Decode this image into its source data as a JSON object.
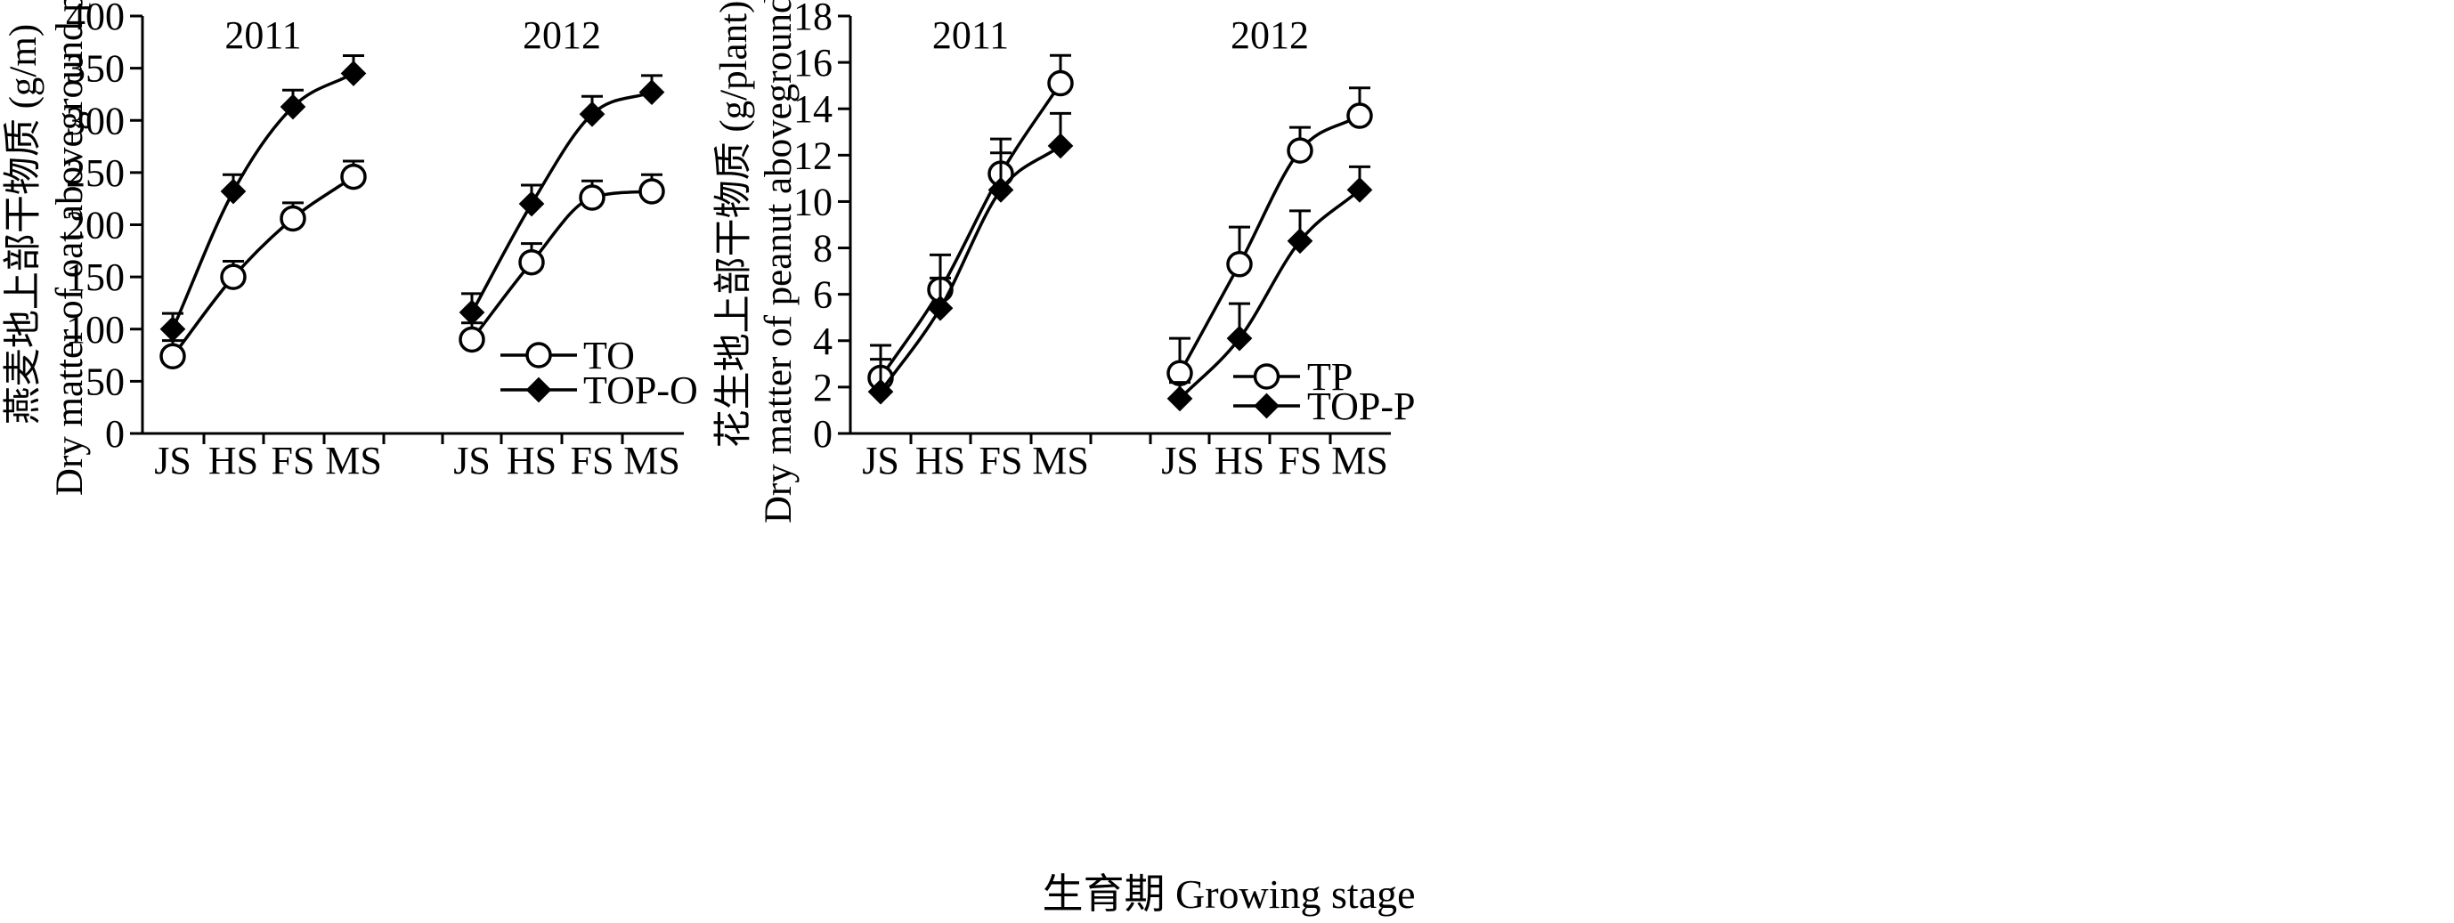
{
  "xlabel": "生育期 Growing stage",
  "chart_data": [
    {
      "type": "line",
      "panel": "oat",
      "ylabel_cn": "燕麦地上部干物质 (g/m)",
      "ylabel_en": "Dry matter of oat aboveground part",
      "ylim": [
        0,
        400
      ],
      "yticks": [
        "0",
        "50",
        "100",
        "150",
        "200",
        "250",
        "300",
        "350",
        "400"
      ],
      "groups": [
        {
          "year": "2011",
          "categories": [
            "JS",
            "HS",
            "FS",
            "MS"
          ],
          "series": [
            {
              "name": "TO",
              "marker": "circle",
              "values": [
                74,
                150,
                206,
                246
              ],
              "errors": [
                15,
                15,
                15,
                15
              ]
            },
            {
              "name": "TOP-O",
              "marker": "diamond",
              "values": [
                100,
                232,
                313,
                345
              ],
              "errors": [
                15,
                16,
                16,
                17
              ]
            }
          ]
        },
        {
          "year": "2012",
          "categories": [
            "JS",
            "HS",
            "FS",
            "MS"
          ],
          "series": [
            {
              "name": "TO",
              "marker": "circle",
              "values": [
                90,
                164,
                226,
                232
              ],
              "errors": [
                16,
                18,
                16,
                16
              ]
            },
            {
              "name": "TOP-O",
              "marker": "diamond",
              "values": [
                116,
                220,
                306,
                327
              ],
              "errors": [
                18,
                18,
                17,
                16
              ]
            }
          ]
        }
      ],
      "legend": [
        {
          "label": "TO",
          "marker": "circle"
        },
        {
          "label": "TOP-O",
          "marker": "diamond"
        }
      ]
    },
    {
      "type": "line",
      "panel": "peanut",
      "ylabel_cn": "花生地上部干物质 (g/plant)",
      "ylabel_en": "Dry matter of peanut aboveground part",
      "ylim": [
        0,
        18
      ],
      "yticks": [
        "0",
        "2",
        "4",
        "6",
        "8",
        "10",
        "12",
        "14",
        "16",
        "18"
      ],
      "groups": [
        {
          "year": "2011",
          "categories": [
            "JS",
            "HS",
            "FS",
            "MS"
          ],
          "series": [
            {
              "name": "TP",
              "marker": "circle",
              "values": [
                2.4,
                6.2,
                11.2,
                15.1
              ],
              "errors": [
                0.8,
                0.5,
                1.5,
                1.2
              ]
            },
            {
              "name": "TOP-P",
              "marker": "diamond",
              "values": [
                1.8,
                5.4,
                10.5,
                12.4
              ],
              "errors": [
                2.0,
                2.3,
                1.6,
                1.4
              ]
            }
          ]
        },
        {
          "year": "2012",
          "categories": [
            "JS",
            "HS",
            "FS",
            "MS"
          ],
          "series": [
            {
              "name": "TP",
              "marker": "circle",
              "values": [
                2.6,
                7.3,
                12.2,
                13.7
              ],
              "errors": [
                1.5,
                1.6,
                1.0,
                1.2
              ]
            },
            {
              "name": "TOP-P",
              "marker": "diamond",
              "values": [
                1.5,
                4.1,
                8.3,
                10.5
              ],
              "errors": [
                0.7,
                1.5,
                1.3,
                1.0
              ]
            }
          ]
        }
      ],
      "legend": [
        {
          "label": "TP",
          "marker": "circle"
        },
        {
          "label": "TOP-P",
          "marker": "diamond"
        }
      ]
    }
  ]
}
